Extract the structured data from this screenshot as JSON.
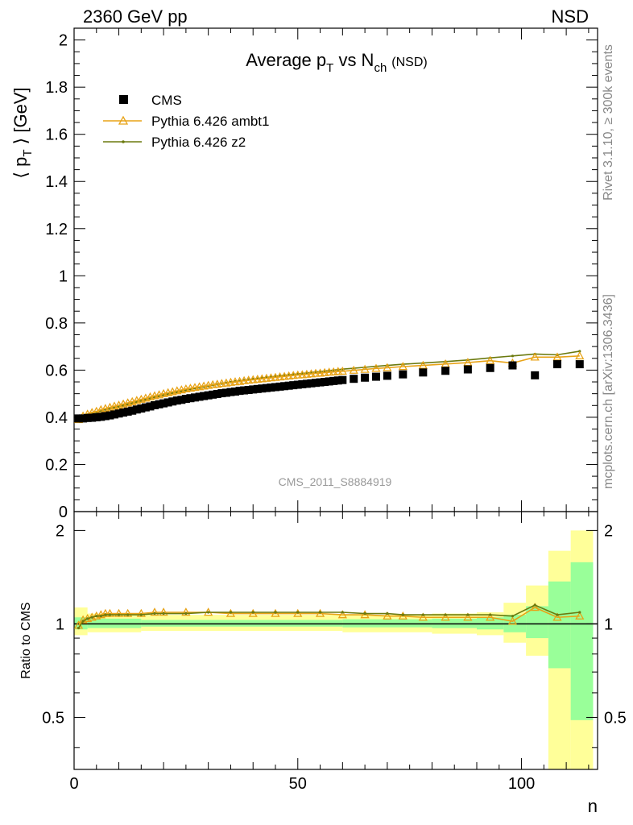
{
  "header": {
    "left_label": "2360 GeV pp",
    "right_label": "NSD"
  },
  "side_labels": {
    "rivet": "Rivet 3.1.10, ≥ 300k events",
    "mcplots": "mcplots.cern.ch [arXiv:1306.3436]"
  },
  "analysis_id": "CMS_2011_S8884919",
  "colors": {
    "data": "#000000",
    "ambt1": "#e8a317",
    "z2": "#6b7a0f",
    "band_yellow": "#ffff99",
    "band_green": "#99ff99"
  },
  "chart_data": [
    {
      "type": "scatter",
      "panel": "main",
      "title_main": "Average p",
      "title_sub": "T",
      "title_mid": " vs N",
      "title_sub2": "ch",
      "title_tail": "(NSD)",
      "ylabel": "⟨ p",
      "ylabel_sub": "T",
      "ylabel_tail": " ⟩ [GeV]",
      "xlim": [
        0,
        117
      ],
      "ylim": [
        0,
        2.05
      ],
      "yticks": [
        "0",
        "0.2",
        "0.4",
        "0.6",
        "0.8",
        "1",
        "1.2",
        "1.4",
        "1.6",
        "1.8",
        "2"
      ],
      "ytick_values": [
        0,
        0.2,
        0.4,
        0.6,
        0.8,
        1.0,
        1.2,
        1.4,
        1.6,
        1.8,
        2.0
      ],
      "legend_position": "top-left",
      "legend": [
        "CMS",
        "Pythia 6.426 ambt1",
        "Pythia 6.426 z2"
      ],
      "x": [
        1,
        2,
        3,
        4,
        5,
        6,
        7,
        8,
        9,
        10,
        11,
        12,
        13,
        14,
        15,
        16,
        17,
        18,
        19,
        20,
        21,
        22,
        23,
        24,
        25,
        26,
        27,
        28,
        29,
        30,
        31,
        32,
        33,
        34,
        35,
        36,
        37,
        38,
        39,
        40,
        41,
        42,
        43,
        44,
        45,
        46,
        47,
        48,
        49,
        50,
        51,
        52,
        53,
        54,
        55,
        56,
        57,
        58,
        59,
        60,
        62.5,
        65,
        67.5,
        70,
        73.5,
        78,
        83,
        88,
        93,
        98,
        103,
        108,
        113
      ],
      "series": [
        {
          "name": "CMS",
          "values": [
            0.395,
            0.395,
            0.397,
            0.398,
            0.4,
            0.402,
            0.405,
            0.408,
            0.412,
            0.416,
            0.42,
            0.424,
            0.428,
            0.433,
            0.437,
            0.442,
            0.446,
            0.451,
            0.455,
            0.459,
            0.463,
            0.467,
            0.471,
            0.474,
            0.478,
            0.481,
            0.484,
            0.487,
            0.49,
            0.493,
            0.496,
            0.499,
            0.502,
            0.504,
            0.507,
            0.509,
            0.512,
            0.514,
            0.516,
            0.518,
            0.52,
            0.522,
            0.524,
            0.526,
            0.528,
            0.53,
            0.532,
            0.534,
            0.536,
            0.538,
            0.54,
            0.542,
            0.544,
            0.546,
            0.548,
            0.55,
            0.552,
            0.554,
            0.556,
            0.558,
            0.563,
            0.568,
            0.572,
            0.576,
            0.582,
            0.59,
            0.597,
            0.603,
            0.609,
            0.62,
            0.578,
            0.625,
            0.625
          ]
        },
        {
          "name": "Pythia 6.426 ambt1",
          "values": [
            0.39,
            0.405,
            0.413,
            0.42,
            0.425,
            0.432,
            0.437,
            0.442,
            0.447,
            0.451,
            0.456,
            0.461,
            0.466,
            0.471,
            0.476,
            0.481,
            0.486,
            0.491,
            0.495,
            0.5,
            0.504,
            0.508,
            0.512,
            0.516,
            0.52,
            0.523,
            0.526,
            0.529,
            0.532,
            0.535,
            0.538,
            0.54,
            0.543,
            0.545,
            0.548,
            0.55,
            0.552,
            0.555,
            0.557,
            0.559,
            0.561,
            0.563,
            0.565,
            0.567,
            0.569,
            0.571,
            0.573,
            0.575,
            0.577,
            0.579,
            0.58,
            0.582,
            0.584,
            0.586,
            0.587,
            0.589,
            0.591,
            0.592,
            0.594,
            0.595,
            0.599,
            0.603,
            0.607,
            0.61,
            0.615,
            0.62,
            0.626,
            0.632,
            0.64,
            0.63,
            0.655,
            0.655,
            0.66
          ]
        },
        {
          "name": "Pythia 6.426 z2",
          "values": [
            0.385,
            0.404,
            0.412,
            0.418,
            0.422,
            0.428,
            0.433,
            0.437,
            0.442,
            0.446,
            0.45,
            0.455,
            0.46,
            0.465,
            0.47,
            0.475,
            0.48,
            0.485,
            0.49,
            0.494,
            0.499,
            0.503,
            0.507,
            0.511,
            0.515,
            0.519,
            0.523,
            0.526,
            0.53,
            0.533,
            0.537,
            0.54,
            0.543,
            0.546,
            0.549,
            0.552,
            0.554,
            0.557,
            0.56,
            0.562,
            0.564,
            0.567,
            0.569,
            0.571,
            0.574,
            0.576,
            0.578,
            0.58,
            0.582,
            0.584,
            0.586,
            0.588,
            0.59,
            0.592,
            0.594,
            0.596,
            0.598,
            0.6,
            0.602,
            0.604,
            0.608,
            0.612,
            0.616,
            0.62,
            0.625,
            0.63,
            0.636,
            0.643,
            0.652,
            0.66,
            0.668,
            0.665,
            0.68
          ]
        }
      ]
    },
    {
      "type": "line",
      "panel": "ratio",
      "ylabel": "Ratio to CMS",
      "xlabel": "n",
      "xlim": [
        0,
        117
      ],
      "ylim": [
        0.34,
        2.3
      ],
      "log_y": true,
      "xticks": [
        "0",
        "50",
        "100"
      ],
      "xtick_values": [
        0,
        50,
        100
      ],
      "yticks": [
        "0.5",
        "1",
        "2"
      ],
      "ytick_values": [
        0.5,
        1.0,
        2.0
      ],
      "bands": [
        {
          "x0": 0,
          "x1": 3,
          "yellow": [
            0.92,
            1.13
          ],
          "green": [
            0.96,
            1.05
          ]
        },
        {
          "x0": 3,
          "x1": 15,
          "yellow": [
            0.94,
            1.08
          ],
          "green": [
            0.97,
            1.04
          ]
        },
        {
          "x0": 15,
          "x1": 60,
          "yellow": [
            0.95,
            1.07
          ],
          "green": [
            0.98,
            1.03
          ]
        },
        {
          "x0": 60,
          "x1": 80,
          "yellow": [
            0.94,
            1.07
          ],
          "green": [
            0.975,
            1.035
          ]
        },
        {
          "x0": 80,
          "x1": 90,
          "yellow": [
            0.93,
            1.08
          ],
          "green": [
            0.97,
            1.04
          ]
        },
        {
          "x0": 90,
          "x1": 96,
          "yellow": [
            0.92,
            1.09
          ],
          "green": [
            0.96,
            1.05
          ]
        },
        {
          "x0": 96,
          "x1": 101,
          "yellow": [
            0.87,
            1.17
          ],
          "green": [
            0.94,
            1.07
          ]
        },
        {
          "x0": 101,
          "x1": 106,
          "yellow": [
            0.79,
            1.33
          ],
          "green": [
            0.9,
            1.14
          ]
        },
        {
          "x0": 106,
          "x1": 111,
          "yellow": [
            0.34,
            1.72
          ],
          "green": [
            0.72,
            1.37
          ]
        },
        {
          "x0": 111,
          "x1": 116,
          "yellow": [
            0.34,
            2.0
          ],
          "green": [
            0.49,
            1.58
          ]
        }
      ],
      "series": [
        {
          "name": "Pythia 6.426 ambt1",
          "x": [
            1,
            2,
            3,
            4,
            5,
            6,
            7,
            8,
            10,
            12,
            15,
            18,
            20,
            25,
            30,
            35,
            40,
            45,
            50,
            55,
            60,
            65,
            70,
            73.5,
            78,
            83,
            88,
            93,
            98,
            103,
            108,
            113
          ],
          "values": [
            0.99,
            1.03,
            1.04,
            1.05,
            1.06,
            1.07,
            1.08,
            1.08,
            1.08,
            1.08,
            1.08,
            1.09,
            1.09,
            1.09,
            1.09,
            1.08,
            1.08,
            1.08,
            1.08,
            1.08,
            1.07,
            1.07,
            1.06,
            1.06,
            1.05,
            1.05,
            1.05,
            1.05,
            1.02,
            1.13,
            1.05,
            1.06
          ]
        },
        {
          "name": "Pythia 6.426 z2",
          "x": [
            1,
            2,
            3,
            4,
            5,
            6,
            7,
            8,
            10,
            12,
            15,
            18,
            20,
            25,
            30,
            35,
            40,
            45,
            50,
            55,
            60,
            65,
            70,
            73.5,
            78,
            83,
            88,
            93,
            98,
            103,
            108,
            113
          ],
          "values": [
            0.97,
            1.02,
            1.04,
            1.05,
            1.06,
            1.06,
            1.07,
            1.07,
            1.07,
            1.07,
            1.07,
            1.08,
            1.08,
            1.08,
            1.09,
            1.09,
            1.09,
            1.09,
            1.09,
            1.09,
            1.09,
            1.08,
            1.08,
            1.07,
            1.07,
            1.07,
            1.07,
            1.07,
            1.06,
            1.15,
            1.07,
            1.09
          ]
        }
      ]
    }
  ]
}
